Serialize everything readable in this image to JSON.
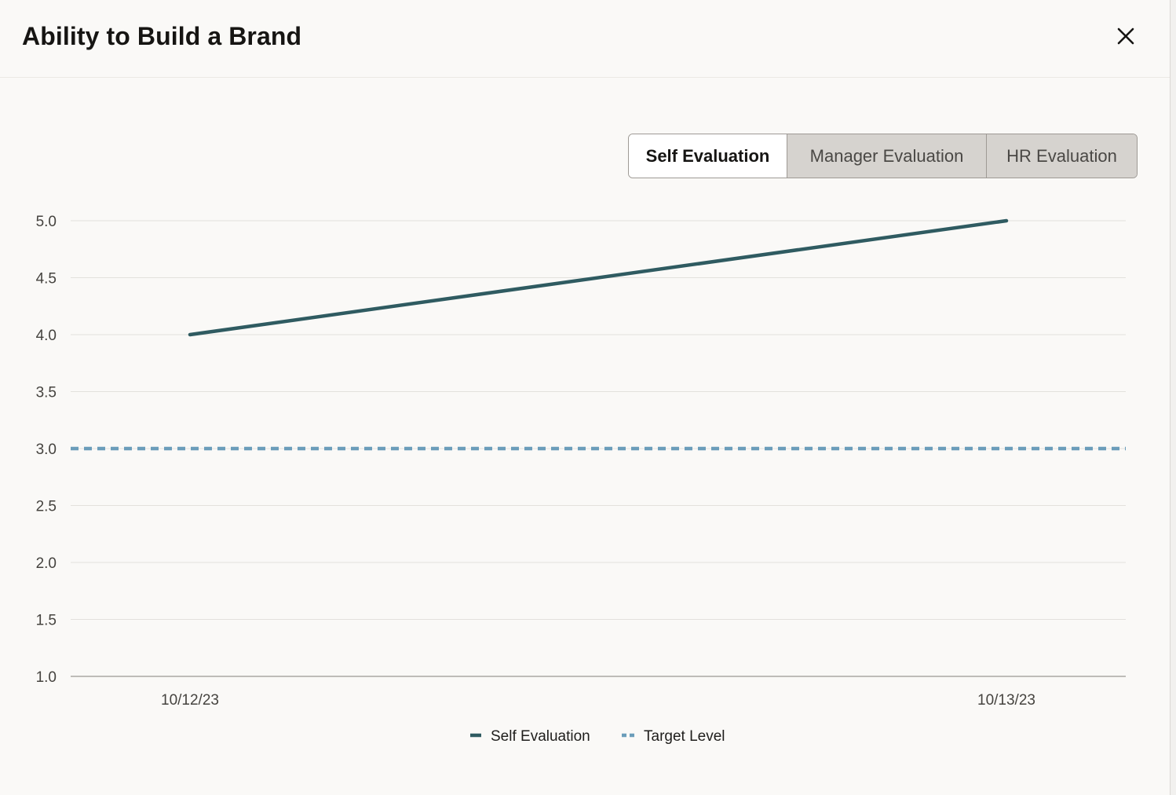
{
  "dialog": {
    "title": "Ability to Build a Brand"
  },
  "icons": {
    "close": "close-icon"
  },
  "segments": {
    "selected": "Self Evaluation",
    "items": [
      {
        "label": "Self Evaluation"
      },
      {
        "label": "Manager Evaluation"
      },
      {
        "label": "HR Evaluation"
      }
    ]
  },
  "colors": {
    "self_series": "#2f5b61",
    "target_series": "#6b9dba",
    "grid": "#e3e1dd",
    "axis": "#9a9793",
    "tick_text": "#45433f"
  },
  "chart_data": {
    "type": "line",
    "x": [
      "10/12/23",
      "10/13/23"
    ],
    "series": [
      {
        "name": "Self Evaluation",
        "values": [
          4.0,
          5.0
        ]
      },
      {
        "name": "Target Level",
        "values": [
          3.0,
          3.0
        ]
      }
    ],
    "y_ticks": [
      "5.0",
      "4.5",
      "4.0",
      "3.5",
      "3.0",
      "2.5",
      "2.0",
      "1.5",
      "1.0"
    ],
    "ylim": [
      1.0,
      5.0
    ],
    "grid": true,
    "legend": [
      {
        "label": "Self Evaluation"
      },
      {
        "label": "Target Level"
      }
    ],
    "legend_position": "bottom"
  }
}
